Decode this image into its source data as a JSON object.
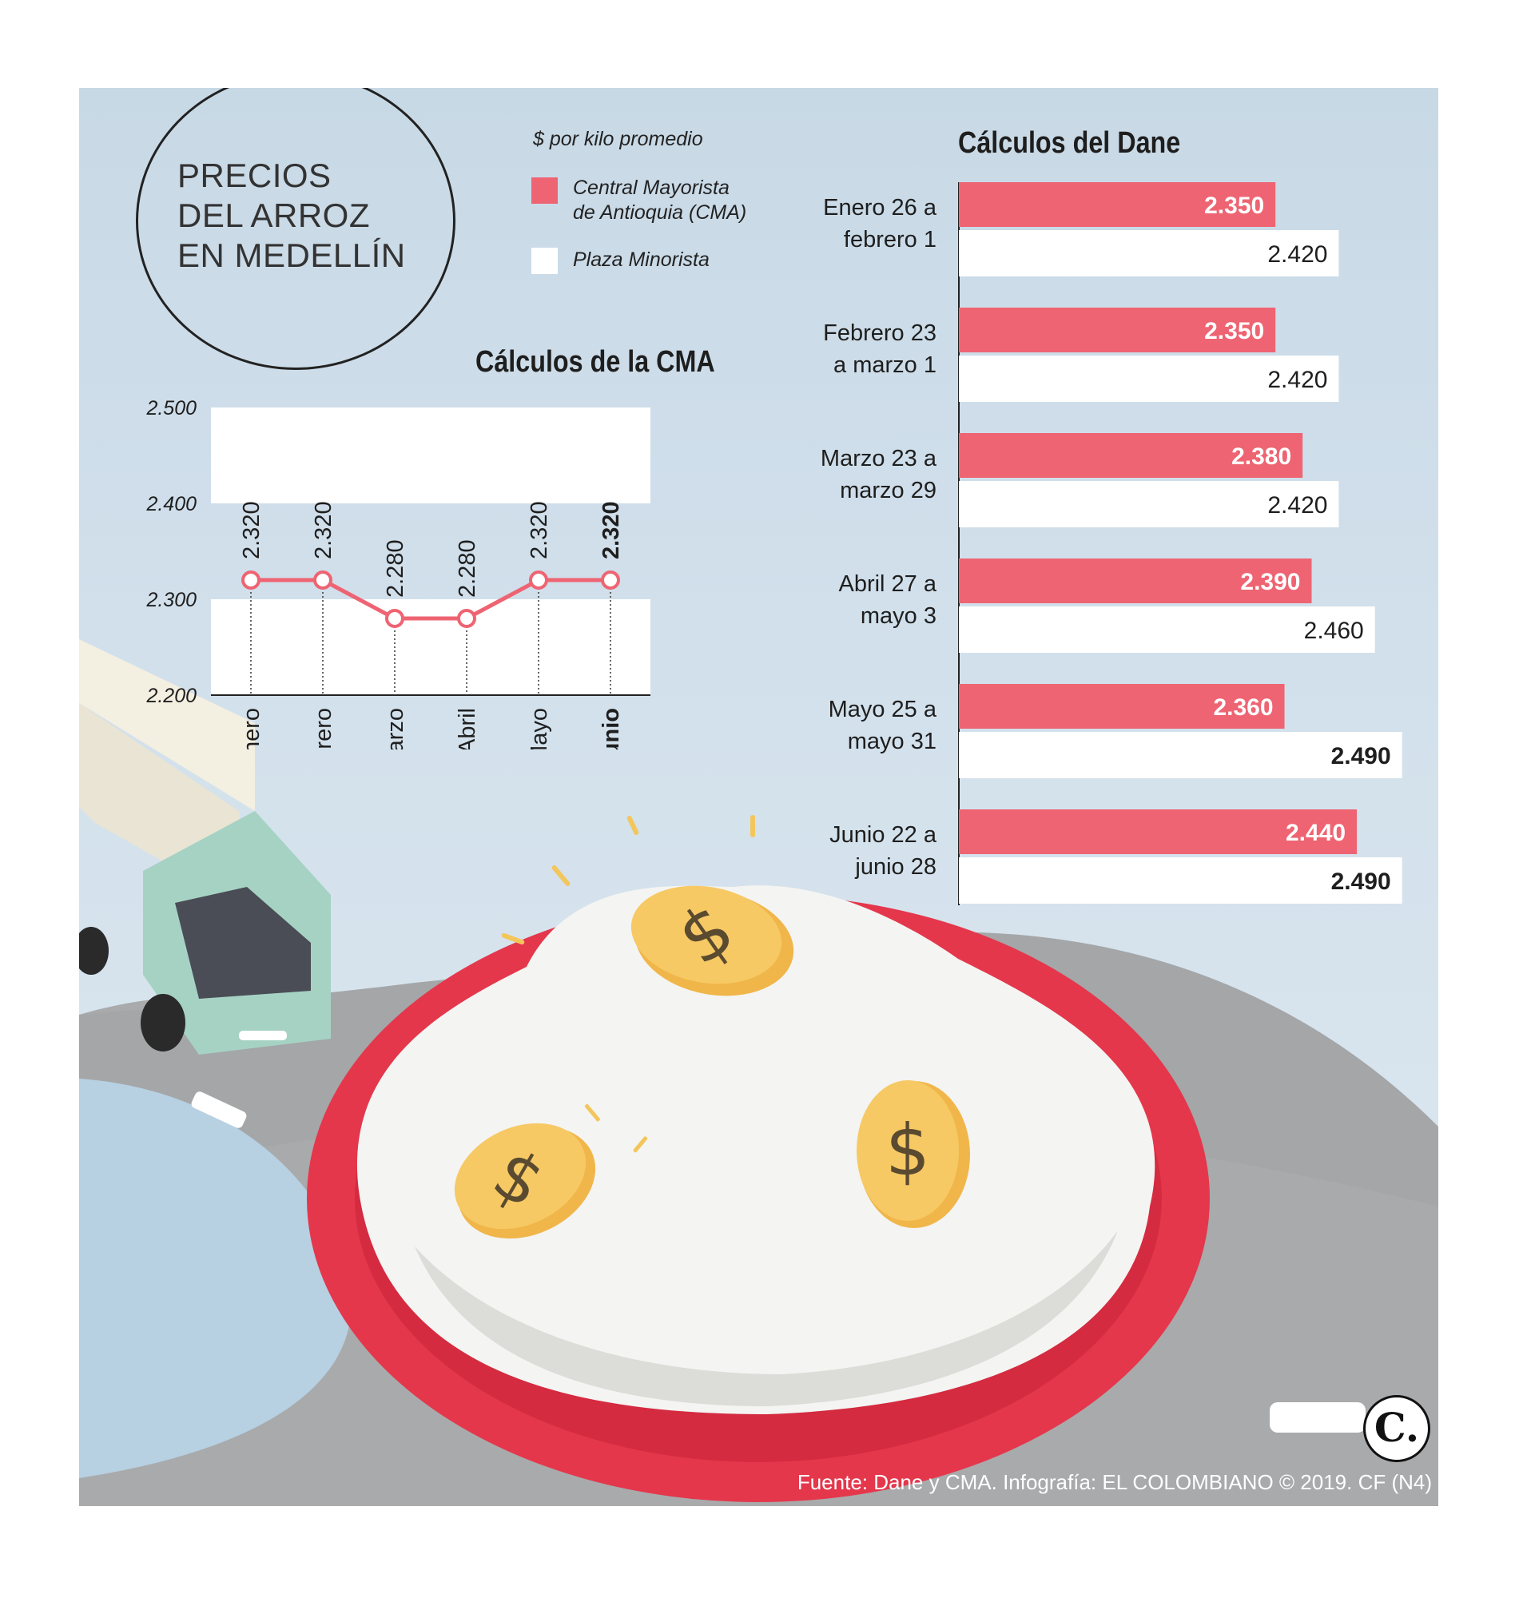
{
  "title": "PRECIOS\nDEL ARROZ\nEN MEDELLÍN",
  "legend": {
    "title": "$ por kilo promedio",
    "items": [
      {
        "label": "Central Mayorista\nde Antioquia (CMA)",
        "color": "#ee6472"
      },
      {
        "label": "Plaza Minorista",
        "color": "#ffffff"
      }
    ]
  },
  "chart_data": [
    {
      "type": "line",
      "title": "Cálculos de la CMA",
      "categories": [
        "Enero",
        "Febrero",
        "Marzo",
        "Abril",
        "Mayo",
        "Junio"
      ],
      "values": [
        2320,
        2320,
        2280,
        2280,
        2320,
        2320
      ],
      "value_labels": [
        "2.320",
        "2.320",
        "2.280",
        "2.280",
        "2.320",
        "2.320"
      ],
      "yticks": [
        "2.500",
        "2.400",
        "2.300",
        "2.200"
      ],
      "ylim": [
        2200,
        2500
      ],
      "highlight_last": true,
      "color": "#ee6472"
    },
    {
      "type": "bar",
      "title": "Cálculos del Dane",
      "categories": [
        "Enero 26 a\nfebrero 1",
        "Febrero 23\na marzo 1",
        "Marzo 23 a\nmarzo 29",
        "Abril 27 a\nmayo 3",
        "Mayo 25 a\nmayo 31",
        "Junio 22 a\njunio 28"
      ],
      "series": [
        {
          "name": "Central Mayorista de Antioquia (CMA)",
          "values": [
            2350,
            2350,
            2380,
            2390,
            2360,
            2440
          ],
          "labels": [
            "2.350",
            "2.350",
            "2.380",
            "2.390",
            "2.360",
            "2.440"
          ],
          "color": "#ee6472"
        },
        {
          "name": "Plaza Minorista",
          "values": [
            2420,
            2420,
            2420,
            2460,
            2490,
            2490
          ],
          "labels": [
            "2.420",
            "2.420",
            "2.420",
            "2.460",
            "2.490",
            "2.490"
          ],
          "color": "#ffffff",
          "bold": [
            false,
            false,
            false,
            false,
            true,
            true
          ]
        }
      ]
    }
  ],
  "footer": {
    "source": "Fuente: Dane y CMA. Infografía: EL COLOMBIANO © 2019. CF (N4)",
    "logo": "C."
  }
}
